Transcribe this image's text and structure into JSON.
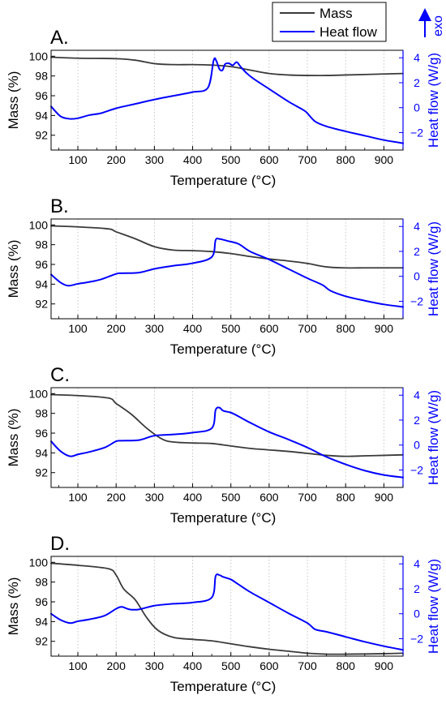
{
  "legend": {
    "items": [
      {
        "label": "Mass",
        "color": "#3a3a3a"
      },
      {
        "label": "Heat flow",
        "color": "#0000ff"
      }
    ],
    "exo_label": "exo",
    "exo_color": "#0000ff"
  },
  "axes_text": {
    "xlabel": "Temperature (°C)",
    "ylabel_left": "Mass (%)",
    "ylabel_right": "Heat flow (W/g)"
  },
  "chart_data": [
    {
      "type": "line",
      "panel_label": "A.",
      "xlabel": "Temperature (°C)",
      "ylabel": "Mass (%)",
      "y2label": "Heat flow (W/g)",
      "xlim": [
        30,
        950
      ],
      "ylim": [
        90.5,
        100.6
      ],
      "y2lim": [
        -3.4,
        4.6
      ],
      "x_ticks": [
        100,
        200,
        300,
        400,
        500,
        600,
        700,
        800,
        900
      ],
      "y_ticks": [
        92,
        94,
        96,
        98,
        100
      ],
      "y2_ticks": [
        -2,
        0,
        2,
        4
      ],
      "grid": "vertical-dotted",
      "series": [
        {
          "name": "Mass",
          "axis": "left",
          "color": "#3a3a3a",
          "x": [
            30,
            100,
            200,
            250,
            300,
            350,
            400,
            450,
            500,
            550,
            600,
            650,
            700,
            750,
            800,
            850,
            900,
            950
          ],
          "y": [
            99.9,
            99.8,
            99.75,
            99.6,
            99.25,
            99.15,
            99.15,
            99.1,
            98.95,
            98.6,
            98.25,
            98.1,
            98.05,
            98.05,
            98.1,
            98.15,
            98.2,
            98.25
          ]
        },
        {
          "name": "Heat flow",
          "axis": "right",
          "color": "#0000ff",
          "x": [
            30,
            55,
            80,
            100,
            130,
            160,
            200,
            250,
            300,
            350,
            400,
            440,
            455,
            462,
            470,
            478,
            485,
            495,
            505,
            515,
            525,
            540,
            560,
            600,
            650,
            690,
            700,
            720,
            750,
            800,
            850,
            900,
            950
          ],
          "y": [
            0.1,
            -0.7,
            -0.9,
            -0.85,
            -0.6,
            -0.45,
            -0.05,
            0.3,
            0.65,
            0.95,
            1.25,
            1.6,
            3.8,
            3.75,
            3.1,
            3.0,
            3.5,
            3.55,
            3.4,
            3.65,
            3.3,
            2.8,
            2.3,
            1.5,
            0.5,
            -0.2,
            -0.45,
            -1.1,
            -1.5,
            -1.9,
            -2.25,
            -2.6,
            -2.85
          ]
        }
      ]
    },
    {
      "type": "line",
      "panel_label": "B.",
      "xlabel": "Temperature (°C)",
      "ylabel": "Mass (%)",
      "y2label": "Heat flow (W/g)",
      "xlim": [
        30,
        950
      ],
      "ylim": [
        90.5,
        100.6
      ],
      "y2lim": [
        -3.4,
        4.6
      ],
      "x_ticks": [
        100,
        200,
        300,
        400,
        500,
        600,
        700,
        800,
        900
      ],
      "y_ticks": [
        92,
        94,
        96,
        98,
        100
      ],
      "y2_ticks": [
        -2,
        0,
        2,
        4
      ],
      "grid": "vertical-dotted",
      "series": [
        {
          "name": "Mass",
          "axis": "left",
          "color": "#3a3a3a",
          "x": [
            30,
            100,
            180,
            200,
            250,
            300,
            350,
            400,
            450,
            500,
            550,
            600,
            650,
            700,
            750,
            800,
            850,
            900,
            950
          ],
          "y": [
            99.9,
            99.8,
            99.6,
            99.3,
            98.6,
            97.8,
            97.45,
            97.4,
            97.3,
            97.1,
            96.8,
            96.55,
            96.35,
            96.1,
            95.75,
            95.65,
            95.65,
            95.65,
            95.65
          ]
        },
        {
          "name": "Heat flow",
          "axis": "right",
          "color": "#0000ff",
          "x": [
            30,
            55,
            75,
            100,
            130,
            160,
            200,
            215,
            260,
            300,
            350,
            400,
            450,
            460,
            470,
            490,
            520,
            550,
            600,
            650,
            700,
            740,
            760,
            800,
            850,
            900,
            950
          ],
          "y": [
            0.15,
            -0.5,
            -0.75,
            -0.6,
            -0.45,
            -0.25,
            0.2,
            0.25,
            0.3,
            0.6,
            0.85,
            1.05,
            1.55,
            2.9,
            3.0,
            2.85,
            2.6,
            2.0,
            1.35,
            0.6,
            -0.15,
            -0.7,
            -1.15,
            -1.6,
            -1.95,
            -2.25,
            -2.45
          ]
        }
      ]
    },
    {
      "type": "line",
      "panel_label": "C.",
      "xlabel": "Temperature (°C)",
      "ylabel": "Mass (%)",
      "y2label": "Heat flow (W/g)",
      "xlim": [
        30,
        950
      ],
      "ylim": [
        90.5,
        100.6
      ],
      "y2lim": [
        -3.4,
        4.6
      ],
      "x_ticks": [
        100,
        200,
        300,
        400,
        500,
        600,
        700,
        800,
        900
      ],
      "y_ticks": [
        92,
        94,
        96,
        98,
        100
      ],
      "y2_ticks": [
        -2,
        0,
        2,
        4
      ],
      "grid": "vertical-dotted",
      "series": [
        {
          "name": "Mass",
          "axis": "left",
          "color": "#3a3a3a",
          "x": [
            30,
            100,
            180,
            200,
            240,
            280,
            320,
            350,
            400,
            450,
            500,
            550,
            600,
            650,
            700,
            750,
            800,
            850,
            900,
            950
          ],
          "y": [
            99.9,
            99.8,
            99.55,
            99.0,
            97.9,
            96.5,
            95.4,
            95.1,
            95.0,
            94.95,
            94.7,
            94.45,
            94.3,
            94.15,
            93.95,
            93.75,
            93.65,
            93.7,
            93.75,
            93.8
          ]
        },
        {
          "name": "Heat flow",
          "axis": "right",
          "color": "#0000ff",
          "x": [
            30,
            55,
            80,
            100,
            130,
            170,
            200,
            215,
            260,
            300,
            350,
            400,
            450,
            460,
            470,
            480,
            500,
            520,
            550,
            600,
            650,
            700,
            750,
            800,
            850,
            900,
            950
          ],
          "y": [
            0.3,
            -0.5,
            -0.9,
            -0.75,
            -0.55,
            -0.2,
            0.3,
            0.35,
            0.4,
            0.75,
            0.85,
            1.0,
            1.35,
            2.8,
            3.0,
            2.75,
            2.6,
            2.3,
            1.8,
            1.05,
            0.45,
            -0.2,
            -0.95,
            -1.55,
            -2.05,
            -2.4,
            -2.6
          ]
        }
      ]
    },
    {
      "type": "line",
      "panel_label": "D.",
      "xlabel": "Temperature (°C)",
      "ylabel": "Mass (%)",
      "y2label": "Heat flow (W/g)",
      "xlim": [
        30,
        950
      ],
      "ylim": [
        90.5,
        100.6
      ],
      "y2lim": [
        -3.4,
        4.6
      ],
      "x_ticks": [
        100,
        200,
        300,
        400,
        500,
        600,
        700,
        800,
        900
      ],
      "y_ticks": [
        92,
        94,
        96,
        98,
        100
      ],
      "y2_ticks": [
        -2,
        0,
        2,
        4
      ],
      "grid": "vertical-dotted",
      "series": [
        {
          "name": "Mass",
          "axis": "left",
          "color": "#3a3a3a",
          "x": [
            30,
            100,
            180,
            200,
            220,
            250,
            280,
            310,
            350,
            400,
            450,
            500,
            550,
            600,
            650,
            700,
            750,
            800,
            850,
            900,
            950
          ],
          "y": [
            99.9,
            99.7,
            99.35,
            98.7,
            97.3,
            96.2,
            94.4,
            93.1,
            92.4,
            92.2,
            92.05,
            91.75,
            91.45,
            91.2,
            91.0,
            90.8,
            90.7,
            90.7,
            90.72,
            90.75,
            90.8
          ]
        },
        {
          "name": "Heat flow",
          "axis": "right",
          "color": "#0000ff",
          "x": [
            30,
            55,
            80,
            100,
            130,
            170,
            200,
            215,
            235,
            260,
            300,
            350,
            400,
            450,
            460,
            470,
            480,
            500,
            520,
            550,
            600,
            650,
            700,
            720,
            750,
            800,
            850,
            900,
            950
          ],
          "y": [
            0.0,
            -0.5,
            -0.75,
            -0.6,
            -0.45,
            -0.15,
            0.4,
            0.55,
            0.35,
            0.35,
            0.65,
            0.8,
            0.9,
            1.3,
            3.0,
            3.1,
            2.95,
            2.75,
            2.35,
            1.75,
            0.9,
            0.05,
            -0.75,
            -1.25,
            -1.45,
            -1.85,
            -2.25,
            -2.6,
            -2.9
          ]
        }
      ]
    }
  ]
}
